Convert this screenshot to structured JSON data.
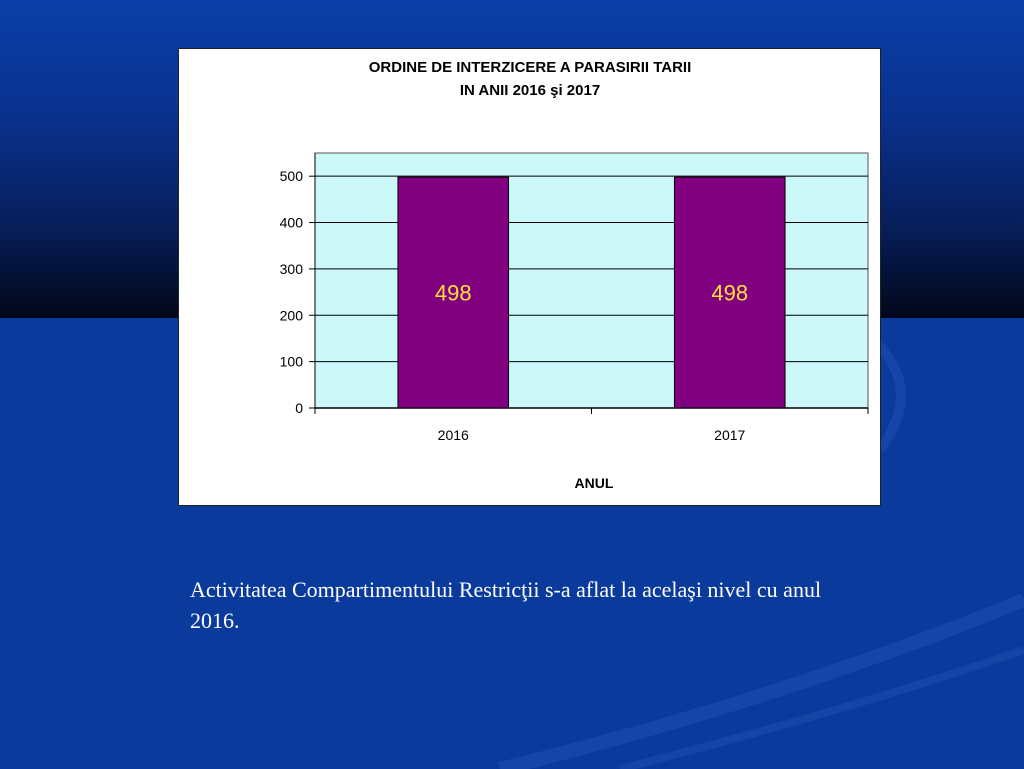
{
  "colors": {
    "plot_area": "#ccf8fa",
    "bar": "#800080",
    "data_label": "#ffe03a",
    "gridline": "#000000",
    "caption_text": "#ffffff"
  },
  "chart_data": {
    "type": "bar",
    "title_line1": "ORDINE DE INTERZICERE A PARASIRII TARII",
    "title_line2": "IN  ANII 2016 şi 2017",
    "xlabel": "ANUL",
    "ylabel": "",
    "categories": [
      "2016",
      "2017"
    ],
    "values": [
      498,
      498
    ],
    "data_labels": [
      "498",
      "498"
    ],
    "ylim": [
      0,
      550
    ],
    "yticks": [
      0,
      100,
      200,
      300,
      400,
      500
    ],
    "ytick_labels": [
      "0",
      "100",
      "200",
      "300",
      "400",
      "500"
    ],
    "grid": true,
    "legend": "none"
  },
  "caption": {
    "text": "Activitatea Compartimentului Restricţii s-a aflat la acelaşi nivel cu anul 2016."
  }
}
